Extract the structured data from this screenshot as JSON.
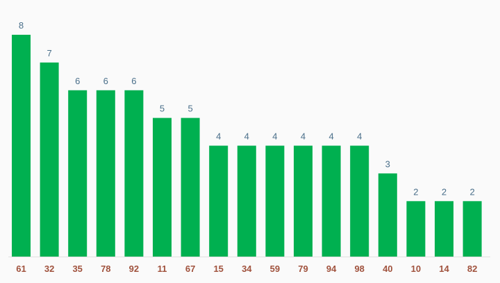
{
  "colors": {
    "background": "#fafafa",
    "bar": "#00b050",
    "value_label": "#4a6f8a",
    "category_label": "#a0523d",
    "axis_line": "#e0e0e0"
  },
  "chart_data": {
    "type": "bar",
    "categories": [
      "61",
      "32",
      "35",
      "78",
      "92",
      "11",
      "67",
      "15",
      "34",
      "59",
      "79",
      "94",
      "98",
      "40",
      "10",
      "14",
      "82"
    ],
    "values": [
      8,
      7,
      6,
      6,
      6,
      5,
      5,
      4,
      4,
      4,
      4,
      4,
      4,
      3,
      2,
      2,
      2
    ],
    "value_labels": [
      "8",
      "7",
      "6",
      "6",
      "6",
      "5",
      "5",
      "4",
      "4",
      "4",
      "4",
      "4",
      "4",
      "3",
      "2",
      "2",
      "2"
    ],
    "title": "",
    "xlabel": "",
    "ylabel": "",
    "ylim": [
      0,
      8
    ],
    "grid": false,
    "legend": "none"
  }
}
